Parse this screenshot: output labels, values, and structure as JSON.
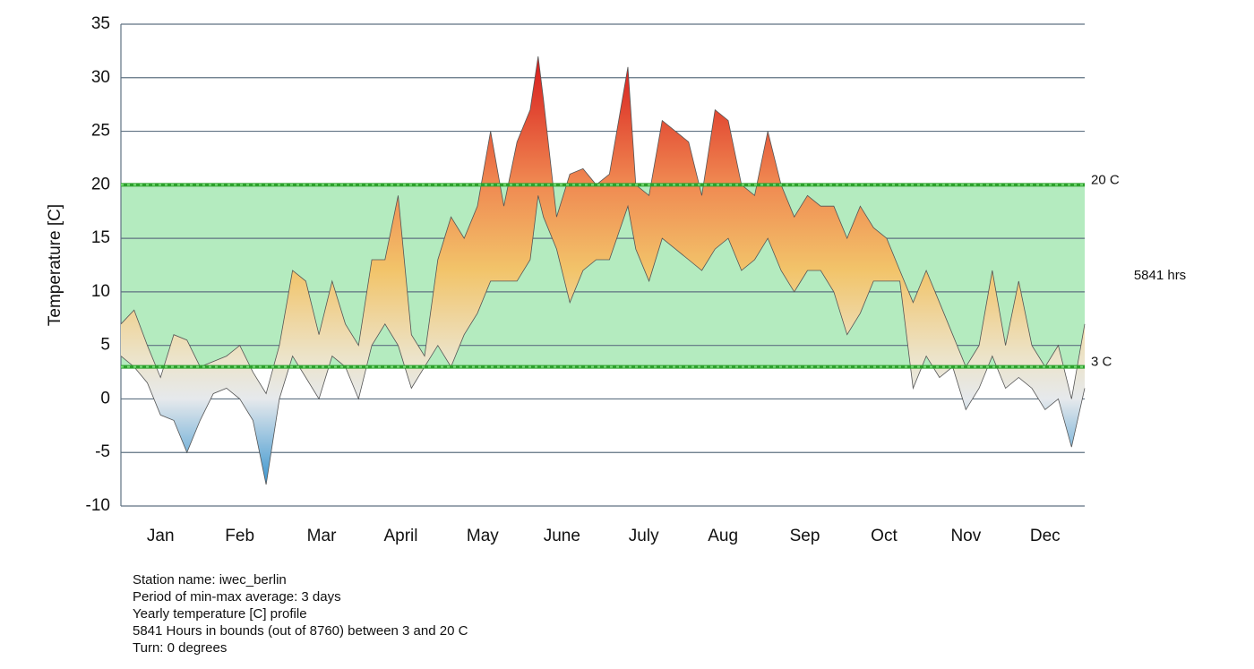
{
  "chart_data": {
    "type": "range-area",
    "ylabel": "Temperature [C]",
    "xlim": [
      0,
      365
    ],
    "xticks": [
      {
        "value": 15,
        "label": "Jan"
      },
      {
        "value": 45,
        "label": "Feb"
      },
      {
        "value": 76,
        "label": "Mar"
      },
      {
        "value": 106,
        "label": "April"
      },
      {
        "value": 137,
        "label": "May"
      },
      {
        "value": 167,
        "label": "June"
      },
      {
        "value": 198,
        "label": "July"
      },
      {
        "value": 228,
        "label": "Aug"
      },
      {
        "value": 259,
        "label": "Sep"
      },
      {
        "value": 289,
        "label": "Oct"
      },
      {
        "value": 320,
        "label": "Nov"
      },
      {
        "value": 350,
        "label": "Dec"
      }
    ],
    "ylim": [
      -10,
      35
    ],
    "yticks": [
      -10,
      -5,
      0,
      5,
      10,
      15,
      20,
      25,
      30,
      35
    ],
    "grid": true,
    "x": [
      0,
      5,
      10,
      15,
      20,
      25,
      30,
      35,
      40,
      45,
      50,
      55,
      60,
      65,
      70,
      75,
      80,
      85,
      90,
      95,
      100,
      105,
      110,
      115,
      120,
      125,
      130,
      135,
      140,
      145,
      150,
      155,
      158,
      160,
      165,
      170,
      175,
      180,
      185,
      192,
      195,
      200,
      205,
      210,
      215,
      220,
      225,
      230,
      235,
      240,
      245,
      250,
      255,
      260,
      265,
      270,
      275,
      280,
      285,
      290,
      295,
      300,
      305,
      310,
      315,
      320,
      325,
      330,
      335,
      340,
      345,
      350,
      355,
      360,
      365
    ],
    "series": [
      {
        "values": [
          7,
          8.3,
          5,
          2,
          6,
          5.5,
          3,
          3.5,
          4,
          5,
          2.5,
          0.5,
          5,
          12,
          11,
          6,
          11,
          7,
          5,
          13,
          13,
          19,
          6,
          4,
          13,
          17,
          15,
          18,
          25,
          18,
          24,
          27,
          32,
          28,
          17,
          21,
          21.5,
          20,
          21,
          31,
          20,
          19,
          26,
          25,
          24,
          19,
          27,
          26,
          20,
          19,
          25,
          20,
          17,
          19,
          18,
          18,
          15,
          18,
          16,
          15,
          12,
          9,
          12,
          9,
          6,
          3,
          5,
          12,
          5,
          11,
          5,
          3,
          5,
          0,
          7
        ]
      },
      {
        "values": [
          4,
          3,
          1.5,
          -1.5,
          -2,
          -5,
          -2,
          0.5,
          1,
          0,
          -2,
          -8,
          0,
          4,
          2,
          0,
          4,
          3,
          0,
          5,
          7,
          5,
          1,
          3,
          5,
          3,
          6,
          8,
          11,
          11,
          11,
          13,
          19,
          17,
          14,
          9,
          12,
          13,
          13,
          18,
          14,
          11,
          15,
          14,
          13,
          12,
          14,
          15,
          12,
          13,
          15,
          12,
          10,
          12,
          12,
          10,
          6,
          8,
          11,
          11,
          11,
          1,
          4,
          2,
          3,
          -1,
          1,
          4,
          1,
          2,
          1,
          -1,
          0,
          -4.5,
          1
        ]
      }
    ],
    "band": [
      3,
      20
    ],
    "band_color": "#b4ebbf",
    "band_labels": [
      "3 C",
      "20 C"
    ],
    "band_hours_label": "5841 hrs",
    "notes": [
      "Station name: iwec_berlin",
      "Period of min-max average: 3 days",
      "Yearly temperature [C] profile",
      "5841 Hours in bounds (out of 8760) between 3 and 20 C",
      "Turn: 0 degrees"
    ]
  }
}
